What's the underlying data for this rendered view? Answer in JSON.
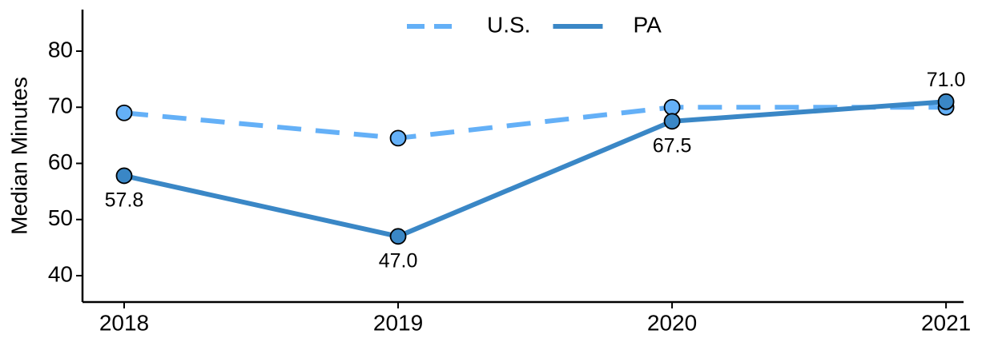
{
  "chart_data": {
    "type": "line",
    "y_label": "Median Minutes",
    "x": [
      2018,
      2019,
      2020,
      2021
    ],
    "xlim": [
      2017.848,
      2021.064
    ],
    "xticks": [
      2018,
      2019,
      2020,
      2021
    ],
    "ylim": [
      35.3,
      87.4
    ],
    "yticks": [
      40,
      50,
      60,
      70,
      80
    ],
    "legend": "top",
    "series": [
      {
        "name": "U.S.",
        "color": "#64b0f7",
        "dashed": true,
        "values": [
          69.0,
          64.5,
          70.0,
          70.0
        ]
      },
      {
        "name": "PA",
        "color": "#3a87c6",
        "dashed": false,
        "values": [
          57.8,
          47.0,
          67.5,
          71.0
        ],
        "value_labels": [
          "57.8",
          "47.0",
          "67.5",
          "71.0"
        ]
      }
    ]
  }
}
